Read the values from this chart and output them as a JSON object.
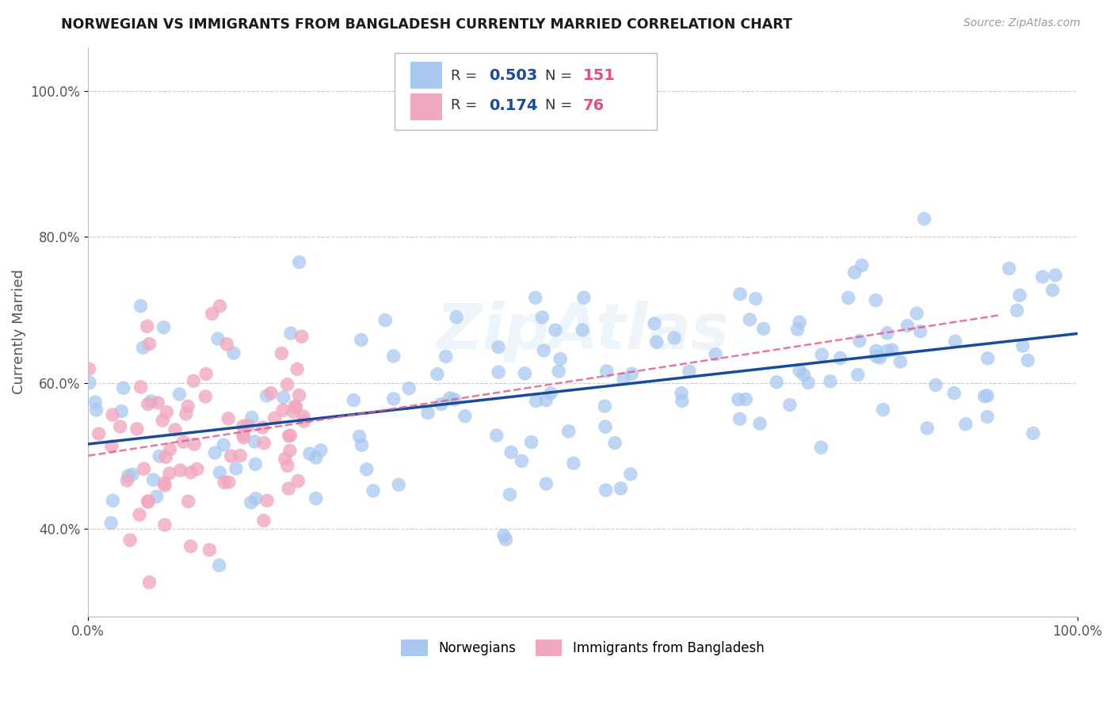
{
  "title": "NORWEGIAN VS IMMIGRANTS FROM BANGLADESH CURRENTLY MARRIED CORRELATION CHART",
  "source": "Source: ZipAtlas.com",
  "ylabel": "Currently Married",
  "xlim": [
    0.0,
    1.0
  ],
  "ylim": [
    0.28,
    1.06
  ],
  "y_ticks": [
    0.4,
    0.6,
    0.8,
    1.0
  ],
  "y_tick_labels": [
    "40.0%",
    "60.0%",
    "80.0%",
    "100.0%"
  ],
  "blue_color": "#a8c8f0",
  "blue_line_color": "#1a4a9a",
  "pink_color": "#f0a8c0",
  "pink_line_color": "#e06090",
  "R_norwegian": 0.503,
  "N_norwegian": 151,
  "R_bangladesh": 0.174,
  "N_bangladesh": 76,
  "legend_R_color": "#1a4a9a",
  "legend_N_color": "#e05080",
  "watermark": "ZipAtlas",
  "background_color": "#ffffff",
  "grid_color": "#cccccc"
}
